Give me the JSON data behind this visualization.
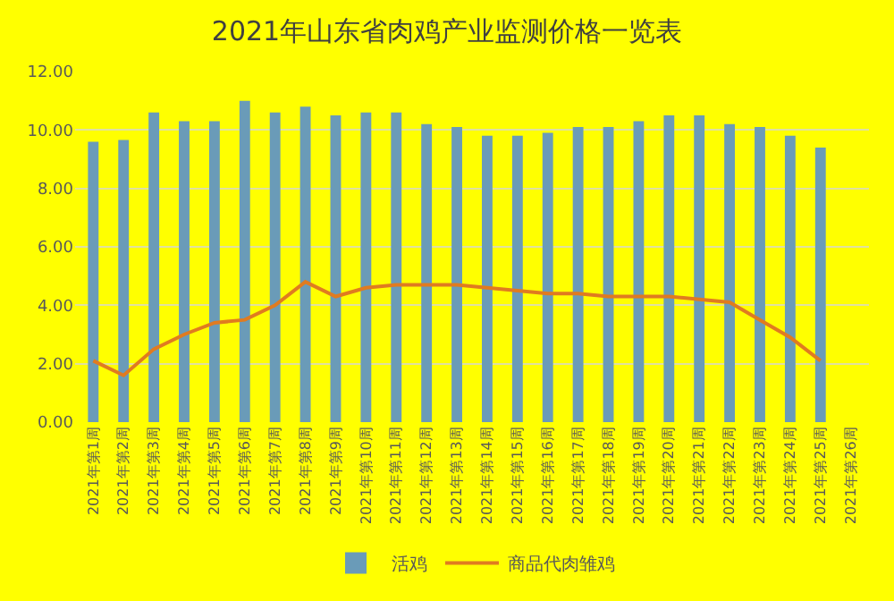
{
  "chart_data": {
    "type": "bar",
    "title": "2021年山东省肉鸡产业监测价格一览表",
    "categories": [
      "2021年第1周",
      "2021年第2周",
      "2021年第3周",
      "2021年第4周",
      "2021年第5周",
      "2021年第6周",
      "2021年第7周",
      "2021年第8周",
      "2021年第9周",
      "2021年第10周",
      "2021年第11周",
      "2021年第12周",
      "2021年第13周",
      "2021年第14周",
      "2021年第15周",
      "2021年第16周",
      "2021年第17周",
      "2021年第18周",
      "2021年第19周",
      "2021年第20周",
      "2021年第21周",
      "2021年第22周",
      "2021年第23周",
      "2021年第24周",
      "2021年第25周",
      "2021年第26周"
    ],
    "series": [
      {
        "name": "活鸡",
        "color": "#6a9bb8",
        "values": [
          9.6,
          9.66,
          10.6,
          10.3,
          10.3,
          11.0,
          10.6,
          10.8,
          10.5,
          10.6,
          10.6,
          10.2,
          10.1,
          9.8,
          9.8,
          9.9,
          10.1,
          10.1,
          10.3,
          10.5,
          10.5,
          10.2,
          10.1,
          9.8,
          9.4,
          null
        ]
      },
      {
        "name": "商品代肉雏鸡",
        "type": "line",
        "color": "#e07b20",
        "values": [
          2.1,
          1.6,
          2.5,
          3.0,
          3.4,
          3.5,
          4.0,
          4.8,
          4.3,
          4.6,
          4.7,
          4.7,
          4.7,
          4.6,
          4.5,
          4.4,
          4.4,
          4.3,
          4.3,
          4.3,
          4.2,
          4.1,
          3.5,
          2.9,
          2.1,
          null
        ]
      }
    ],
    "ylim": [
      0,
      12
    ],
    "yticks": [
      {
        "value": 0,
        "label": "0.00"
      },
      {
        "value": 2,
        "label": "2.00"
      },
      {
        "value": 4,
        "label": "4.00"
      },
      {
        "value": 6,
        "label": "6.00"
      },
      {
        "value": 8,
        "label": "8.00"
      },
      {
        "value": 10,
        "label": "10.00"
      },
      {
        "value": 12,
        "label": "12.00"
      }
    ],
    "grid": "y",
    "legend": "bottom",
    "line_style": "solid",
    "marker": "none"
  }
}
